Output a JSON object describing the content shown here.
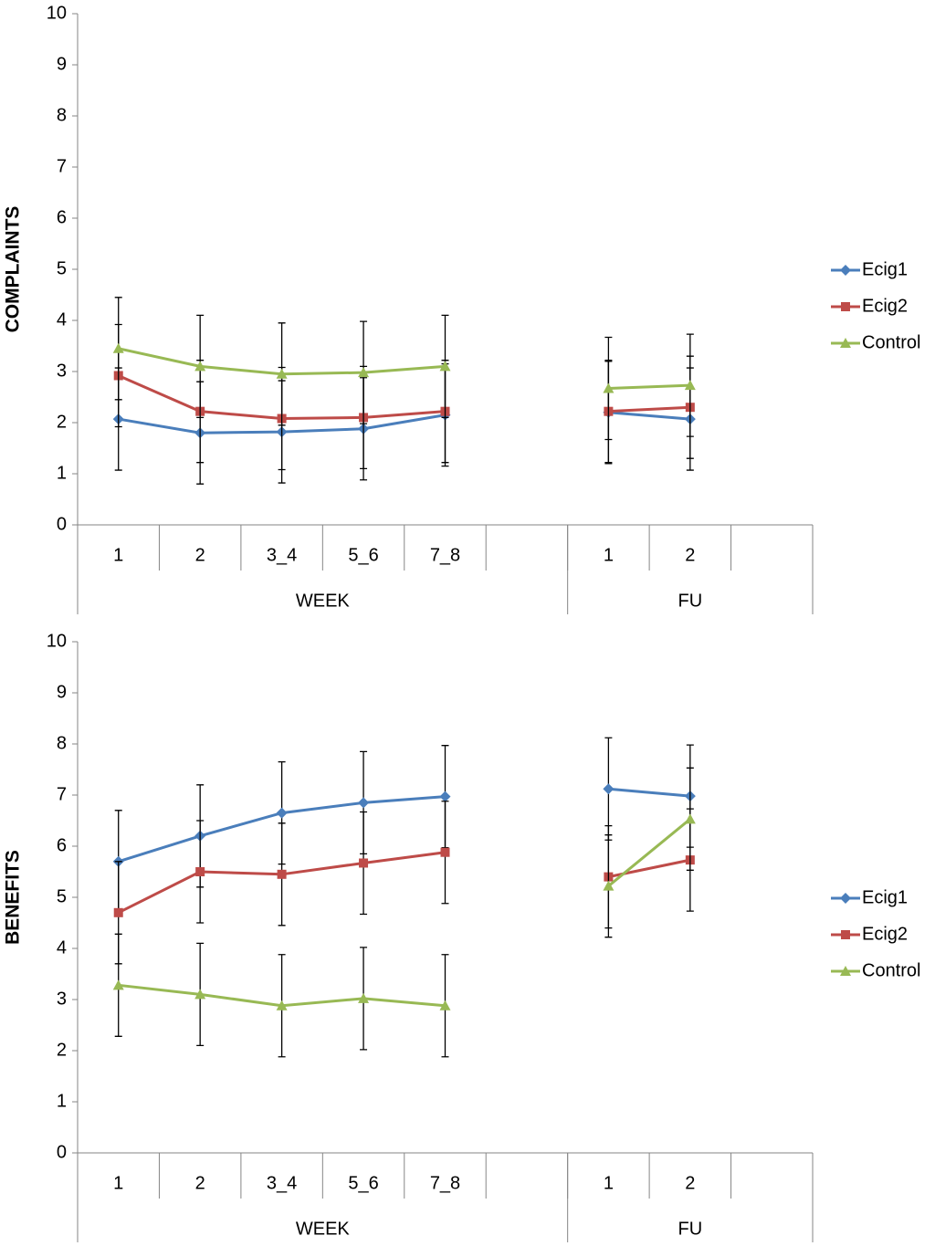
{
  "chart_data": [
    {
      "type": "line",
      "ylabel": "COMPLAINTS",
      "groups": [
        {
          "name": "WEEK",
          "categories": [
            "1",
            "2",
            "3_4",
            "5_6",
            "7_8",
            null
          ]
        },
        {
          "name": "FU",
          "categories": [
            "1",
            "2",
            null
          ]
        }
      ],
      "ylim": [
        0,
        10
      ],
      "yticks": [
        0,
        1,
        2,
        3,
        4,
        5,
        6,
        7,
        8,
        9,
        10
      ],
      "legend": "right",
      "series": [
        {
          "name": "Ecig1",
          "color": "#4a7ebb",
          "marker": "diamond",
          "values": [
            2.07,
            1.8,
            1.82,
            1.88,
            2.15,
            null,
            2.2,
            2.07,
            null
          ],
          "errors": [
            1,
            1,
            1,
            1,
            1,
            null,
            1,
            1,
            null
          ]
        },
        {
          "name": "Ecig2",
          "color": "#be4b48",
          "marker": "square",
          "values": [
            2.92,
            2.22,
            2.08,
            2.1,
            2.22,
            null,
            2.22,
            2.3,
            null
          ],
          "errors": [
            1,
            1,
            1,
            1,
            1,
            null,
            1,
            1,
            null
          ]
        },
        {
          "name": "Control",
          "color": "#98b954",
          "marker": "triangle",
          "values": [
            3.45,
            3.1,
            2.95,
            2.98,
            3.1,
            null,
            2.67,
            2.73,
            null
          ],
          "errors": [
            1,
            1,
            1,
            1,
            1,
            null,
            1,
            1,
            null
          ]
        }
      ]
    },
    {
      "type": "line",
      "ylabel": "BENEFITS",
      "groups": [
        {
          "name": "WEEK",
          "categories": [
            "1",
            "2",
            "3_4",
            "5_6",
            "7_8",
            null
          ]
        },
        {
          "name": "FU",
          "categories": [
            "1",
            "2",
            null
          ]
        }
      ],
      "ylim": [
        0,
        10
      ],
      "yticks": [
        0,
        1,
        2,
        3,
        4,
        5,
        6,
        7,
        8,
        9,
        10
      ],
      "legend": "right",
      "series": [
        {
          "name": "Ecig1",
          "color": "#4a7ebb",
          "marker": "diamond",
          "values": [
            5.7,
            6.2,
            6.65,
            6.85,
            6.97,
            null,
            7.12,
            6.98,
            null
          ],
          "errors": [
            1,
            1,
            1,
            1,
            1,
            null,
            1,
            1,
            null
          ]
        },
        {
          "name": "Ecig2",
          "color": "#be4b48",
          "marker": "square",
          "values": [
            4.7,
            5.5,
            5.45,
            5.67,
            5.88,
            null,
            5.4,
            5.73,
            null
          ],
          "errors": [
            1,
            1,
            1,
            1,
            1,
            null,
            1,
            1,
            null
          ]
        },
        {
          "name": "Control",
          "color": "#98b954",
          "marker": "triangle",
          "values": [
            3.28,
            3.1,
            2.88,
            3.02,
            2.88,
            null,
            5.22,
            6.53,
            null
          ],
          "errors": [
            1,
            1,
            1,
            1,
            1,
            null,
            1,
            1,
            null
          ]
        }
      ]
    }
  ]
}
